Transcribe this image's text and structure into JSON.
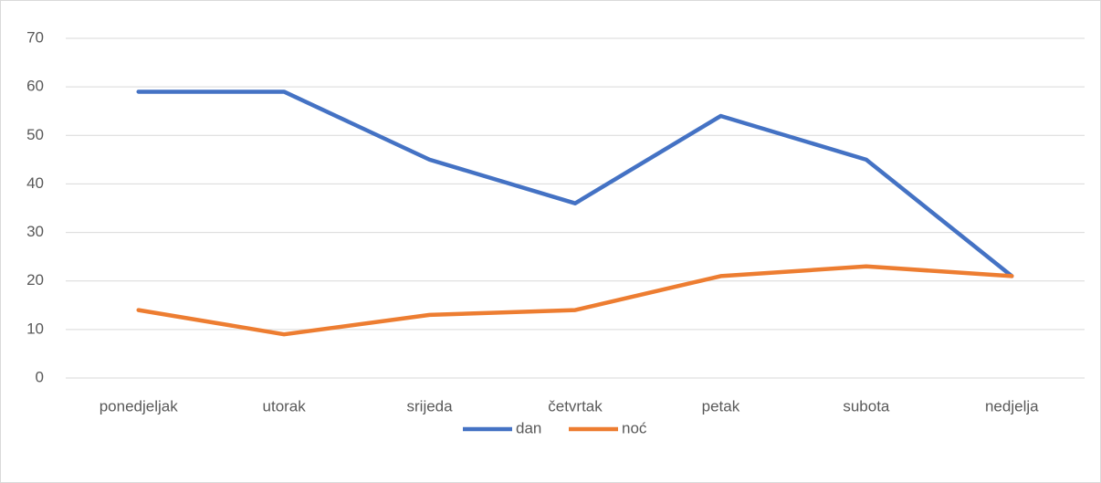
{
  "chart_data": {
    "type": "line",
    "categories": [
      "ponedjeljak",
      "utorak",
      "srijeda",
      "četvrtak",
      "petak",
      "subota",
      "nedjelja"
    ],
    "series": [
      {
        "name": "dan",
        "color": "#4472c4",
        "values": [
          59,
          59,
          45,
          36,
          54,
          45,
          21
        ]
      },
      {
        "name": "noć",
        "color": "#ed7d31",
        "values": [
          14,
          9,
          13,
          14,
          21,
          23,
          21
        ]
      }
    ],
    "ylim": [
      0,
      70
    ],
    "yticks": [
      0,
      10,
      20,
      30,
      40,
      50,
      60,
      70
    ],
    "grid": true,
    "legend": "bottom"
  }
}
